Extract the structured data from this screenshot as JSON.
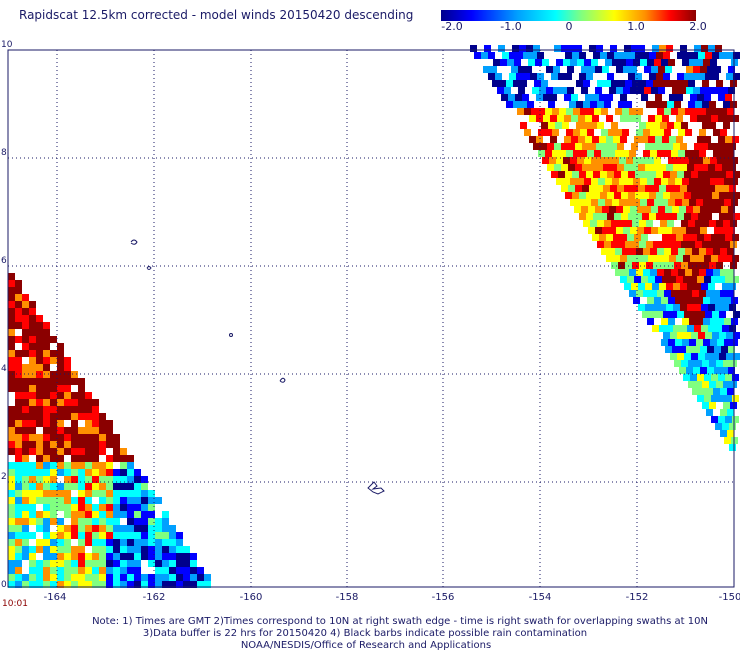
{
  "title": "Rapidscat 12.5km corrected - model winds 20150420 descending",
  "colorbar": {
    "ticks": [
      "-2.0",
      "-1.0",
      "0",
      "1.0",
      "2.0"
    ],
    "colors": [
      "#00008c",
      "#0000ff",
      "#00a0ff",
      "#00ffff",
      "#80ff80",
      "#ffff00",
      "#ff9000",
      "#ff0000",
      "#8b0000"
    ]
  },
  "map": {
    "lat_labels": [
      "10",
      "8",
      "6",
      "4",
      "2",
      "0"
    ],
    "lon_labels": [
      "-164",
      "-162",
      "-160",
      "-158",
      "-156",
      "-154",
      "-152",
      "-150"
    ],
    "lat_range": [
      0,
      10
    ],
    "lon_range": [
      -165,
      -150
    ],
    "grid": true,
    "swath_time": "10:01"
  },
  "notes": {
    "line1": "Note: 1) Times are GMT 2)Times correspond to 10N at right swath edge - time is right swath for overlapping swaths at 10N",
    "line2": "3)Data buffer is 22 hrs for 20150420 4) Black barbs indicate possible rain contamination",
    "line3": "NOAA/NESDIS/Office of Research and Applications"
  }
}
